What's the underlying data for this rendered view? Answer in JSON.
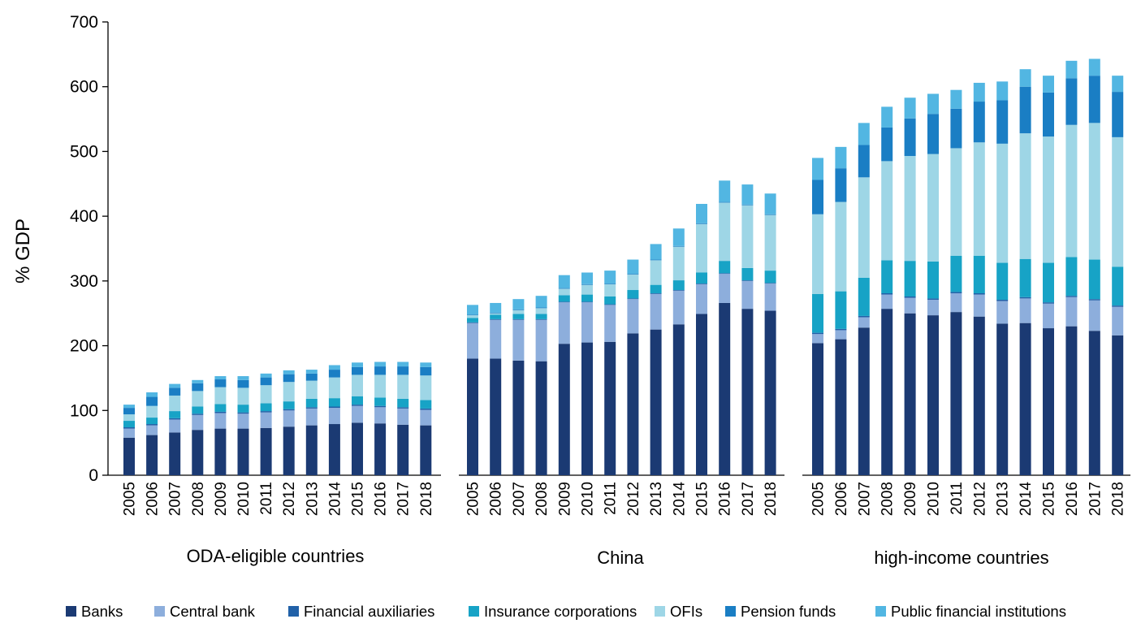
{
  "chart_data": {
    "type": "bar",
    "stacked": true,
    "title": "",
    "ylabel": "% GDP",
    "ylim": [
      0,
      700
    ],
    "yticks": [
      0,
      100,
      200,
      300,
      400,
      500,
      600,
      700
    ],
    "years": [
      "2005",
      "2006",
      "2007",
      "2008",
      "2009",
      "2010",
      "2011",
      "2012",
      "2013",
      "2014",
      "2015",
      "2016",
      "2017",
      "2018"
    ],
    "groups": [
      {
        "name": "ODA-eligible countries",
        "stacks": {
          "Banks": [
            58,
            62,
            66,
            70,
            72,
            72,
            73,
            75,
            77,
            79,
            81,
            80,
            78,
            77
          ],
          "Central bank": [
            14,
            15,
            20,
            23,
            24,
            23,
            24,
            25,
            26,
            25,
            26,
            25,
            25,
            24
          ],
          "Financial auxiliaries": [
            2,
            2,
            2,
            2,
            2,
            2,
            2,
            2,
            2,
            2,
            2,
            2,
            2,
            2
          ],
          "Insurance corporations": [
            10,
            10,
            11,
            11,
            12,
            12,
            12,
            12,
            13,
            13,
            13,
            13,
            13,
            13
          ],
          "OFIs": [
            10,
            18,
            24,
            24,
            26,
            26,
            28,
            30,
            28,
            32,
            33,
            35,
            37,
            38
          ],
          "Pension funds": [
            10,
            14,
            12,
            12,
            12,
            12,
            12,
            12,
            11,
            12,
            12,
            13,
            13,
            13
          ],
          "Public financial institutions": [
            5,
            7,
            6,
            5,
            5,
            6,
            6,
            6,
            6,
            7,
            7,
            7,
            7,
            7
          ]
        }
      },
      {
        "name": "China",
        "stacks": {
          "Banks": [
            180,
            180,
            177,
            176,
            203,
            205,
            206,
            219,
            225,
            233,
            249,
            266,
            257,
            254
          ],
          "Central bank": [
            55,
            60,
            63,
            64,
            64,
            62,
            57,
            53,
            55,
            52,
            46,
            45,
            43,
            42
          ],
          "Financial auxiliaries": [
            1,
            1,
            1,
            1,
            1,
            1,
            1,
            1,
            1,
            1,
            1,
            1,
            1,
            1
          ],
          "Insurance corporations": [
            7,
            7,
            8,
            8,
            10,
            11,
            12,
            13,
            13,
            15,
            17,
            19,
            19,
            19
          ],
          "OFIs": [
            4,
            2,
            6,
            9,
            10,
            15,
            19,
            24,
            38,
            52,
            75,
            90,
            97,
            86
          ],
          "Pension funds": [
            1,
            1,
            1,
            1,
            1,
            1,
            1,
            1,
            1,
            1,
            1,
            1,
            1,
            1
          ],
          "Public financial institutions": [
            15,
            15,
            16,
            18,
            20,
            18,
            20,
            22,
            24,
            27,
            30,
            33,
            31,
            32
          ]
        }
      },
      {
        "name": "high-income countries",
        "stacks": {
          "Banks": [
            204,
            210,
            228,
            257,
            250,
            247,
            252,
            245,
            234,
            235,
            227,
            230,
            223,
            216
          ],
          "Central bank": [
            14,
            14,
            16,
            22,
            24,
            24,
            29,
            34,
            35,
            38,
            38,
            45,
            47,
            44
          ],
          "Financial auxiliaries": [
            2,
            2,
            2,
            2,
            2,
            2,
            2,
            2,
            2,
            2,
            2,
            2,
            2,
            2
          ],
          "Insurance corporations": [
            60,
            58,
            59,
            51,
            55,
            57,
            56,
            58,
            57,
            59,
            61,
            60,
            61,
            60
          ],
          "OFIs": [
            123,
            138,
            155,
            153,
            162,
            166,
            166,
            175,
            184,
            194,
            195,
            204,
            211,
            200
          ],
          "Pension funds": [
            53,
            52,
            50,
            52,
            58,
            62,
            61,
            63,
            67,
            72,
            68,
            72,
            73,
            70
          ],
          "Public financial institutions": [
            34,
            33,
            34,
            32,
            32,
            31,
            29,
            29,
            29,
            27,
            26,
            27,
            26,
            25
          ]
        }
      }
    ],
    "series": [
      {
        "name": "Banks",
        "color": "#1b3a73"
      },
      {
        "name": "Central bank",
        "color": "#8daedc"
      },
      {
        "name": "Financial auxiliaries",
        "color": "#2161a8"
      },
      {
        "name": "Insurance corporations",
        "color": "#17a3c6"
      },
      {
        "name": "OFIs",
        "color": "#9ed6e6"
      },
      {
        "name": "Pension funds",
        "color": "#1a7ec4"
      },
      {
        "name": "Public financial institutions",
        "color": "#52b6e2"
      }
    ],
    "legend_position": "bottom"
  }
}
